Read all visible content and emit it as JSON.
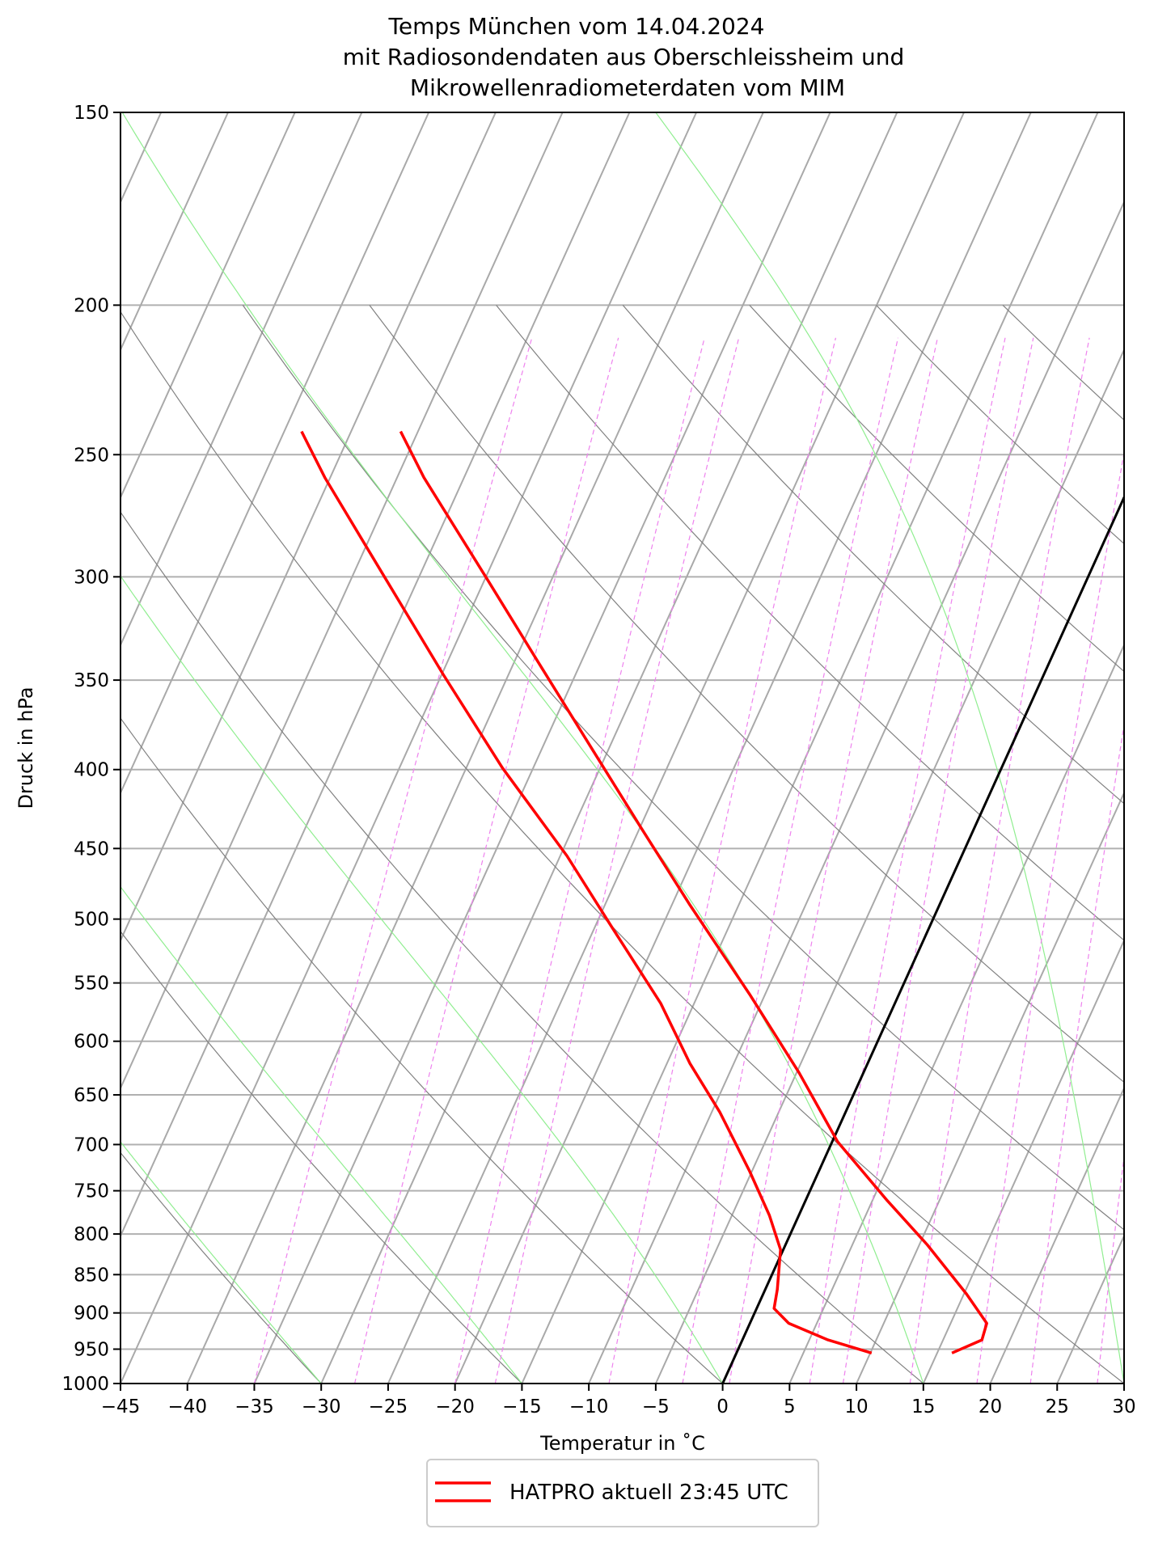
{
  "chart_data": {
    "type": "line",
    "subtype": "skew-T log-p diagram",
    "title": [
      "Temps München vom 14.04.2024",
      "mit Radiosondendaten aus Oberschleissheim und",
      "Mikrowellenradiometerdaten vom MIM"
    ],
    "xlabel": "Temperatur in $^\\circ$C",
    "xlabel_display": "Temperatur in ˚C",
    "ylabel": "Druck in hPa",
    "xlim": [
      -45,
      30
    ],
    "ylim": [
      1000,
      150
    ],
    "yscale": "log",
    "xticks": [
      "−45",
      "−40",
      "−35",
      "−30",
      "−25",
      "−20",
      "−15",
      "−10",
      "−5",
      "0",
      "5",
      "10",
      "15",
      "20",
      "25",
      "30"
    ],
    "xtick_values": [
      -45,
      -40,
      -35,
      -30,
      -25,
      -20,
      -15,
      -10,
      -5,
      0,
      5,
      10,
      15,
      20,
      25,
      30
    ],
    "yticks": [
      "150",
      "200",
      "250",
      "300",
      "350",
      "400",
      "450",
      "500",
      "550",
      "600",
      "650",
      "700",
      "750",
      "800",
      "850",
      "900",
      "950",
      "1000"
    ],
    "ytick_values": [
      150,
      200,
      250,
      300,
      350,
      400,
      450,
      500,
      550,
      600,
      650,
      700,
      750,
      800,
      850,
      900,
      950,
      1000
    ],
    "grid": true,
    "highlighted_isotherm_c": 0,
    "colors": {
      "profile": "#ff0000",
      "isotherm": "#a9a9a9",
      "zero_isotherm": "#000000",
      "dry_adiabat": "#808080",
      "moist_adiabat": "#90ee90",
      "mixing_ratio": "#ee82ee",
      "pressure_grid": "#b0b0b0"
    },
    "series": [
      {
        "color": "#ff0000",
        "points_T_p": [
          [
            -56.3,
            241.5
          ],
          [
            -53.0,
            258.7
          ],
          [
            -44.7,
            301.8
          ],
          [
            -38.4,
            339.5
          ],
          [
            -31.3,
            387.5
          ],
          [
            -25.0,
            435.6
          ],
          [
            -18.6,
            490
          ],
          [
            -11.2,
            559
          ],
          [
            -4.8,
            629
          ],
          [
            0.4,
            697
          ],
          [
            6.1,
            761
          ],
          [
            10.6,
            813
          ],
          [
            15.2,
            875
          ],
          [
            17.7,
            914
          ],
          [
            17.9,
            937
          ],
          [
            16.1,
            955.5
          ]
        ]
      },
      {
        "color": "#ff0000",
        "points_T_p": [
          [
            -63.7,
            241.5
          ],
          [
            -60.4,
            258.7
          ],
          [
            -54.6,
            288.8
          ],
          [
            -44.9,
            347
          ],
          [
            -37.3,
            399
          ],
          [
            -29.5,
            455
          ],
          [
            -23.9,
            504.5
          ],
          [
            -17.5,
            567
          ],
          [
            -13.3,
            620
          ],
          [
            -9.4,
            667
          ],
          [
            -5.2,
            728
          ],
          [
            -2.2,
            778
          ],
          [
            -0.2,
            819
          ],
          [
            0.9,
            869
          ],
          [
            1.3,
            894
          ],
          [
            2.9,
            914
          ],
          [
            6.4,
            937
          ],
          [
            10.1,
            955.5
          ]
        ]
      }
    ],
    "legend": {
      "label": "HATPRO aktuell 23:45 UTC",
      "placement": "bottom-center, below axes"
    }
  }
}
